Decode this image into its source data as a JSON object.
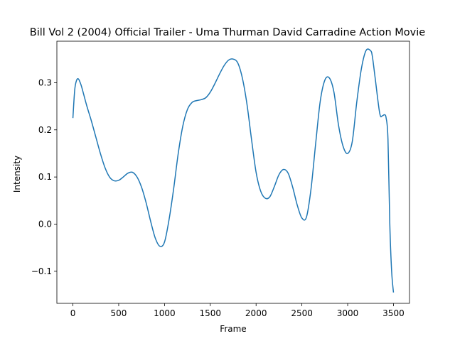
{
  "chart_data": {
    "type": "line",
    "title": "Bill Vol 2 (2004) Official Trailer - Uma Thurman David Carradine Action Movie",
    "xlabel": "Frame",
    "ylabel": "Intensity",
    "xlim": [
      -175,
      3675
    ],
    "ylim": [
      -0.168,
      0.388
    ],
    "xticks": [
      0,
      500,
      1000,
      1500,
      2000,
      2500,
      3000,
      3500
    ],
    "yticks": [
      -0.1,
      0.0,
      0.1,
      0.2,
      0.3
    ],
    "xtick_labels": [
      "0",
      "500",
      "1000",
      "1500",
      "2000",
      "2500",
      "3000",
      "3500"
    ],
    "ytick_labels": [
      "−0.1",
      "0.0",
      "0.1",
      "0.2",
      "0.3"
    ],
    "grid": false,
    "line_color": "#1f77b4",
    "series": [
      {
        "x": [
          0,
          20,
          40,
          60,
          80,
          100,
          150,
          200,
          250,
          300,
          350,
          400,
          450,
          500,
          550,
          600,
          650,
          700,
          750,
          800,
          850,
          900,
          950,
          1000,
          1050,
          1100,
          1150,
          1200,
          1250,
          1300,
          1350,
          1400,
          1450,
          1500,
          1550,
          1600,
          1650,
          1700,
          1750,
          1800,
          1850,
          1900,
          1950,
          2000,
          2050,
          2100,
          2150,
          2200,
          2250,
          2300,
          2350,
          2400,
          2450,
          2500,
          2550,
          2600,
          2650,
          2700,
          2750,
          2800,
          2850,
          2900,
          2950,
          3000,
          3050,
          3100,
          3150,
          3200,
          3250,
          3270,
          3300,
          3350,
          3380,
          3400,
          3420,
          3440,
          3460,
          3480,
          3500
        ],
        "y": [
          0.225,
          0.285,
          0.305,
          0.308,
          0.3,
          0.288,
          0.252,
          0.22,
          0.185,
          0.15,
          0.12,
          0.1,
          0.092,
          0.093,
          0.1,
          0.108,
          0.11,
          0.1,
          0.078,
          0.045,
          0.005,
          -0.03,
          -0.047,
          -0.038,
          0.01,
          0.075,
          0.15,
          0.208,
          0.243,
          0.258,
          0.262,
          0.264,
          0.268,
          0.28,
          0.298,
          0.318,
          0.336,
          0.348,
          0.35,
          0.342,
          0.31,
          0.255,
          0.18,
          0.11,
          0.07,
          0.055,
          0.058,
          0.08,
          0.105,
          0.116,
          0.108,
          0.078,
          0.04,
          0.013,
          0.015,
          0.075,
          0.17,
          0.26,
          0.305,
          0.31,
          0.28,
          0.21,
          0.165,
          0.15,
          0.175,
          0.26,
          0.33,
          0.368,
          0.368,
          0.355,
          0.31,
          0.235,
          0.23,
          0.232,
          0.225,
          0.18,
          0.0,
          -0.1,
          -0.145
        ]
      }
    ]
  }
}
